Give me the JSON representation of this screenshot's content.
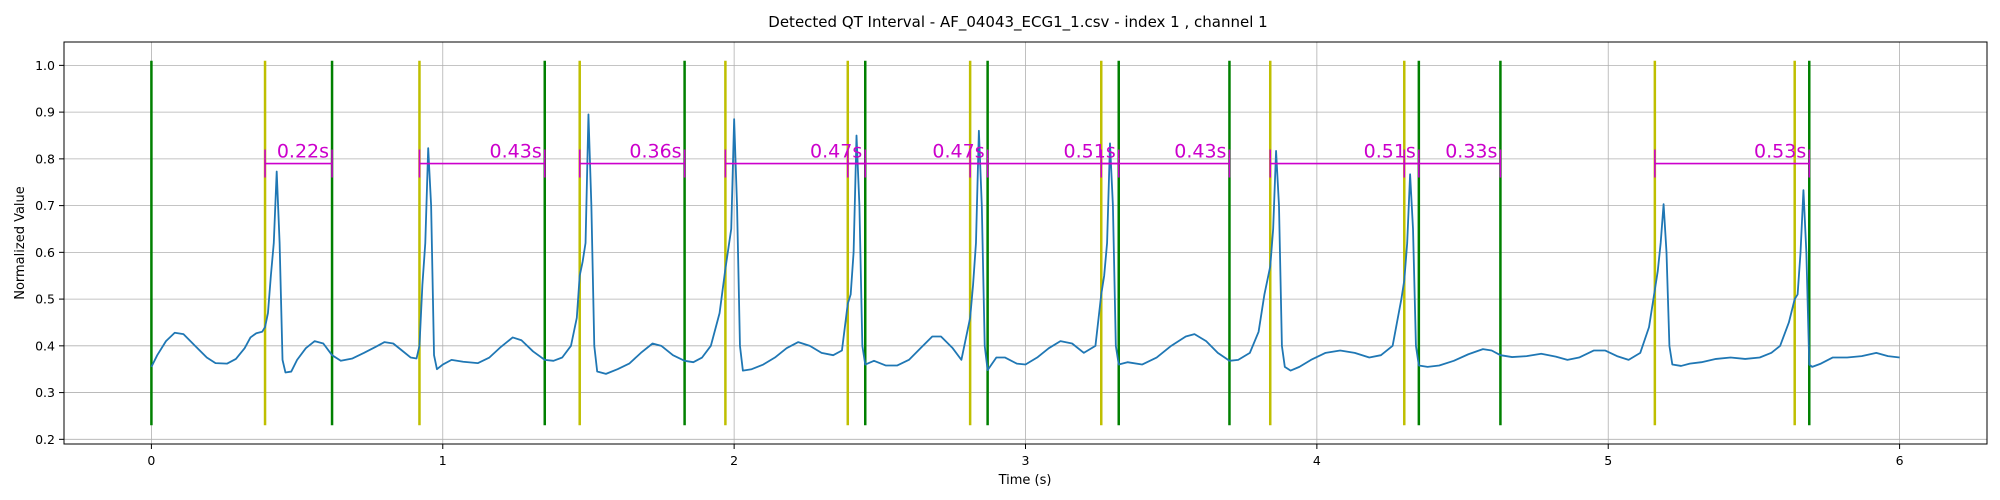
{
  "chart_data": {
    "type": "line",
    "title": "Detected QT Interval - AF_04043_ECG1_1.csv - index 1 , channel 1",
    "xlabel": "Time (s)",
    "ylabel": "Normalized Value",
    "xlim": [
      -0.3,
      6.3
    ],
    "ylim": [
      0.19,
      1.05
    ],
    "xticks": [
      0,
      1,
      2,
      3,
      4,
      5,
      6
    ],
    "yticks": [
      0.2,
      0.3,
      0.4,
      0.5,
      0.6,
      0.7,
      0.8,
      0.9,
      1.0
    ],
    "xtick_labels": [
      "0",
      "1",
      "2",
      "3",
      "4",
      "5",
      "6"
    ],
    "ytick_labels": [
      "0.2",
      "0.3",
      "0.4",
      "0.5",
      "0.6",
      "0.7",
      "0.8",
      "0.9",
      "1.0"
    ],
    "grid": true,
    "line_color": "#1f77b4",
    "marker_y_range": [
      0.23,
      1.01
    ],
    "green_lines": {
      "color": "#008000",
      "x": [
        0.0,
        0.62,
        1.35,
        1.83,
        2.45,
        2.87,
        3.32,
        3.7,
        4.35,
        4.63,
        5.69
      ]
    },
    "yellow_lines": {
      "color": "#bfbf00",
      "x": [
        0.39,
        0.92,
        1.47,
        1.97,
        2.39,
        2.81,
        3.26,
        3.84,
        4.3,
        5.16,
        5.64
      ]
    },
    "qt_intervals": {
      "color": "#cc00cc",
      "y": 0.79,
      "items": [
        {
          "start": 0.39,
          "end": 0.62,
          "label": "0.22s"
        },
        {
          "start": 0.92,
          "end": 1.35,
          "label": "0.43s"
        },
        {
          "start": 1.47,
          "end": 1.83,
          "label": "0.36s"
        },
        {
          "start": 1.97,
          "end": 2.45,
          "label": "0.47s"
        },
        {
          "start": 2.39,
          "end": 2.87,
          "label": "0.47s"
        },
        {
          "start": 2.81,
          "end": 3.32,
          "label": "0.51s"
        },
        {
          "start": 3.26,
          "end": 3.7,
          "label": "0.43s"
        },
        {
          "start": 3.84,
          "end": 4.35,
          "label": "0.51s"
        },
        {
          "start": 4.3,
          "end": 4.63,
          "label": "0.33s"
        },
        {
          "start": 5.16,
          "end": 5.69,
          "label": "0.53s"
        }
      ]
    },
    "signal_keypoints": [
      [
        0.0,
        0.355
      ],
      [
        0.02,
        0.38
      ],
      [
        0.05,
        0.41
      ],
      [
        0.08,
        0.428
      ],
      [
        0.11,
        0.425
      ],
      [
        0.15,
        0.4
      ],
      [
        0.19,
        0.375
      ],
      [
        0.22,
        0.363
      ],
      [
        0.26,
        0.362
      ],
      [
        0.29,
        0.372
      ],
      [
        0.32,
        0.395
      ],
      [
        0.34,
        0.418
      ],
      [
        0.36,
        0.427
      ],
      [
        0.38,
        0.43
      ],
      [
        0.39,
        0.44
      ],
      [
        0.4,
        0.47
      ],
      [
        0.41,
        0.55
      ],
      [
        0.42,
        0.62
      ],
      [
        0.43,
        0.773
      ],
      [
        0.44,
        0.62
      ],
      [
        0.45,
        0.37
      ],
      [
        0.46,
        0.343
      ],
      [
        0.48,
        0.345
      ],
      [
        0.5,
        0.37
      ],
      [
        0.53,
        0.395
      ],
      [
        0.56,
        0.41
      ],
      [
        0.59,
        0.405
      ],
      [
        0.62,
        0.38
      ],
      [
        0.65,
        0.368
      ],
      [
        0.69,
        0.373
      ],
      [
        0.73,
        0.385
      ],
      [
        0.77,
        0.398
      ],
      [
        0.8,
        0.408
      ],
      [
        0.83,
        0.405
      ],
      [
        0.86,
        0.39
      ],
      [
        0.89,
        0.375
      ],
      [
        0.91,
        0.373
      ],
      [
        0.92,
        0.4
      ],
      [
        0.93,
        0.53
      ],
      [
        0.94,
        0.62
      ],
      [
        0.95,
        0.823
      ],
      [
        0.96,
        0.7
      ],
      [
        0.97,
        0.38
      ],
      [
        0.98,
        0.35
      ],
      [
        1.0,
        0.36
      ],
      [
        1.03,
        0.37
      ],
      [
        1.07,
        0.366
      ],
      [
        1.12,
        0.363
      ],
      [
        1.16,
        0.375
      ],
      [
        1.2,
        0.398
      ],
      [
        1.24,
        0.418
      ],
      [
        1.27,
        0.412
      ],
      [
        1.31,
        0.388
      ],
      [
        1.35,
        0.37
      ],
      [
        1.38,
        0.368
      ],
      [
        1.41,
        0.375
      ],
      [
        1.44,
        0.4
      ],
      [
        1.46,
        0.46
      ],
      [
        1.47,
        0.55
      ],
      [
        1.48,
        0.58
      ],
      [
        1.49,
        0.62
      ],
      [
        1.5,
        0.895
      ],
      [
        1.51,
        0.7
      ],
      [
        1.52,
        0.4
      ],
      [
        1.53,
        0.345
      ],
      [
        1.56,
        0.34
      ],
      [
        1.6,
        0.35
      ],
      [
        1.64,
        0.362
      ],
      [
        1.68,
        0.385
      ],
      [
        1.72,
        0.405
      ],
      [
        1.75,
        0.4
      ],
      [
        1.79,
        0.38
      ],
      [
        1.83,
        0.368
      ],
      [
        1.86,
        0.365
      ],
      [
        1.89,
        0.375
      ],
      [
        1.92,
        0.4
      ],
      [
        1.95,
        0.47
      ],
      [
        1.97,
        0.565
      ],
      [
        1.99,
        0.65
      ],
      [
        2.0,
        0.885
      ],
      [
        2.01,
        0.7
      ],
      [
        2.02,
        0.4
      ],
      [
        2.03,
        0.347
      ],
      [
        2.06,
        0.35
      ],
      [
        2.1,
        0.36
      ],
      [
        2.14,
        0.375
      ],
      [
        2.18,
        0.395
      ],
      [
        2.22,
        0.408
      ],
      [
        2.26,
        0.4
      ],
      [
        2.3,
        0.385
      ],
      [
        2.34,
        0.38
      ],
      [
        2.37,
        0.39
      ],
      [
        2.39,
        0.49
      ],
      [
        2.4,
        0.51
      ],
      [
        2.41,
        0.6
      ],
      [
        2.42,
        0.85
      ],
      [
        2.43,
        0.7
      ],
      [
        2.44,
        0.4
      ],
      [
        2.45,
        0.36
      ],
      [
        2.48,
        0.368
      ],
      [
        2.52,
        0.358
      ],
      [
        2.56,
        0.358
      ],
      [
        2.6,
        0.37
      ],
      [
        2.64,
        0.395
      ],
      [
        2.68,
        0.42
      ],
      [
        2.71,
        0.42
      ],
      [
        2.75,
        0.395
      ],
      [
        2.78,
        0.37
      ],
      [
        2.81,
        0.46
      ],
      [
        2.82,
        0.53
      ],
      [
        2.83,
        0.62
      ],
      [
        2.84,
        0.86
      ],
      [
        2.85,
        0.7
      ],
      [
        2.86,
        0.4
      ],
      [
        2.87,
        0.348
      ],
      [
        2.9,
        0.375
      ],
      [
        2.93,
        0.375
      ],
      [
        2.97,
        0.362
      ],
      [
        3.0,
        0.36
      ],
      [
        3.04,
        0.375
      ],
      [
        3.08,
        0.395
      ],
      [
        3.12,
        0.41
      ],
      [
        3.16,
        0.405
      ],
      [
        3.2,
        0.385
      ],
      [
        3.24,
        0.4
      ],
      [
        3.26,
        0.51
      ],
      [
        3.27,
        0.55
      ],
      [
        3.28,
        0.62
      ],
      [
        3.29,
        0.833
      ],
      [
        3.3,
        0.7
      ],
      [
        3.31,
        0.4
      ],
      [
        3.32,
        0.36
      ],
      [
        3.35,
        0.365
      ],
      [
        3.4,
        0.36
      ],
      [
        3.45,
        0.375
      ],
      [
        3.5,
        0.4
      ],
      [
        3.55,
        0.42
      ],
      [
        3.58,
        0.425
      ],
      [
        3.62,
        0.41
      ],
      [
        3.66,
        0.385
      ],
      [
        3.7,
        0.368
      ],
      [
        3.73,
        0.37
      ],
      [
        3.77,
        0.385
      ],
      [
        3.8,
        0.43
      ],
      [
        3.82,
        0.51
      ],
      [
        3.84,
        0.57
      ],
      [
        3.85,
        0.65
      ],
      [
        3.86,
        0.817
      ],
      [
        3.87,
        0.7
      ],
      [
        3.88,
        0.4
      ],
      [
        3.89,
        0.355
      ],
      [
        3.91,
        0.347
      ],
      [
        3.94,
        0.355
      ],
      [
        3.98,
        0.37
      ],
      [
        4.03,
        0.385
      ],
      [
        4.08,
        0.39
      ],
      [
        4.13,
        0.385
      ],
      [
        4.18,
        0.375
      ],
      [
        4.22,
        0.38
      ],
      [
        4.26,
        0.4
      ],
      [
        4.29,
        0.5
      ],
      [
        4.3,
        0.54
      ],
      [
        4.31,
        0.62
      ],
      [
        4.32,
        0.767
      ],
      [
        4.33,
        0.65
      ],
      [
        4.34,
        0.4
      ],
      [
        4.35,
        0.358
      ],
      [
        4.38,
        0.355
      ],
      [
        4.42,
        0.358
      ],
      [
        4.47,
        0.368
      ],
      [
        4.52,
        0.382
      ],
      [
        4.57,
        0.393
      ],
      [
        4.6,
        0.39
      ],
      [
        4.63,
        0.38
      ],
      [
        4.67,
        0.376
      ],
      [
        4.72,
        0.378
      ],
      [
        4.77,
        0.383
      ],
      [
        4.82,
        0.377
      ],
      [
        4.86,
        0.37
      ],
      [
        4.9,
        0.375
      ],
      [
        4.95,
        0.39
      ],
      [
        4.99,
        0.39
      ],
      [
        5.03,
        0.378
      ],
      [
        5.07,
        0.37
      ],
      [
        5.11,
        0.385
      ],
      [
        5.14,
        0.44
      ],
      [
        5.16,
        0.52
      ],
      [
        5.17,
        0.56
      ],
      [
        5.18,
        0.62
      ],
      [
        5.19,
        0.703
      ],
      [
        5.2,
        0.6
      ],
      [
        5.21,
        0.4
      ],
      [
        5.22,
        0.36
      ],
      [
        5.25,
        0.357
      ],
      [
        5.28,
        0.362
      ],
      [
        5.32,
        0.365
      ],
      [
        5.37,
        0.372
      ],
      [
        5.42,
        0.375
      ],
      [
        5.47,
        0.372
      ],
      [
        5.52,
        0.375
      ],
      [
        5.56,
        0.385
      ],
      [
        5.59,
        0.4
      ],
      [
        5.62,
        0.45
      ],
      [
        5.64,
        0.5
      ],
      [
        5.65,
        0.51
      ],
      [
        5.66,
        0.6
      ],
      [
        5.67,
        0.733
      ],
      [
        5.68,
        0.6
      ],
      [
        5.69,
        0.36
      ],
      [
        5.7,
        0.355
      ],
      [
        5.73,
        0.362
      ],
      [
        5.77,
        0.375
      ],
      [
        5.82,
        0.375
      ],
      [
        5.87,
        0.378
      ],
      [
        5.92,
        0.385
      ],
      [
        5.96,
        0.378
      ],
      [
        6.0,
        0.375
      ]
    ]
  }
}
